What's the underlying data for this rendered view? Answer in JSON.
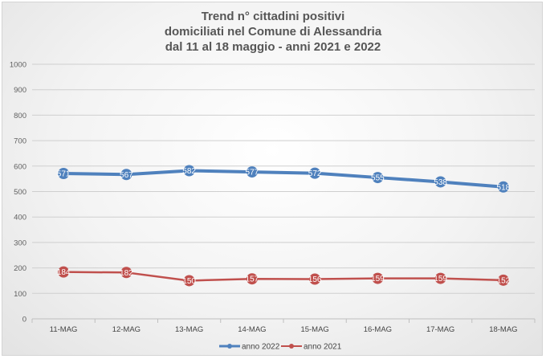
{
  "chart_data": {
    "type": "line",
    "title": [
      "Trend n° cittadini positivi",
      "domiciliati nel Comune di Alessandria",
      "dal 11 al 18 maggio - anni 2021 e 2022"
    ],
    "categories": [
      "11-MAG",
      "12-MAG",
      "13-MAG",
      "14-MAG",
      "15-MAG",
      "16-MAG",
      "17-MAG",
      "18-MAG"
    ],
    "ylim": [
      0,
      1000
    ],
    "yticks": [
      0,
      100,
      200,
      300,
      400,
      500,
      600,
      700,
      800,
      900,
      1000
    ],
    "grid": true,
    "legend_position": "bottom",
    "series": [
      {
        "name": "anno 2022",
        "color": "#4f81bd",
        "values": [
          571,
          567,
          582,
          577,
          572,
          555,
          538,
          518
        ],
        "labels": [
          "571",
          "567",
          "582",
          "577",
          "572",
          "555",
          "538",
          "518"
        ]
      },
      {
        "name": "anno 2021",
        "color": "#c0504d",
        "values": [
          184,
          182,
          150,
          157,
          156,
          159,
          159,
          152
        ],
        "labels": [
          "184",
          "182",
          "150",
          "157",
          "156",
          "159",
          "159",
          "152"
        ]
      }
    ]
  }
}
